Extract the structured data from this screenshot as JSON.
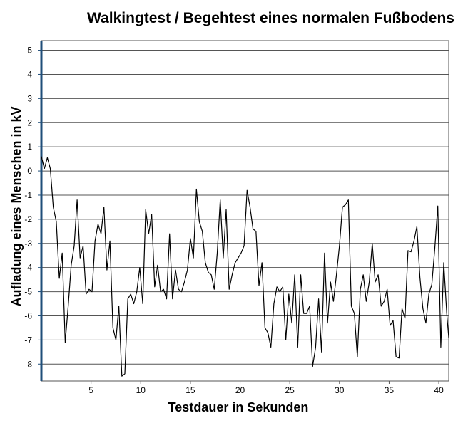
{
  "chart_data": {
    "type": "line",
    "title": "Walkingtest / Begehtest eines normalen Fußbodens",
    "xlabel": "Testdauer in Sekunden",
    "ylabel": "Aufladung eines Menschen in kV",
    "xlim": [
      0,
      41
    ],
    "ylim": [
      -8.7,
      5.4
    ],
    "xticks": [
      5,
      10,
      15,
      20,
      25,
      30,
      35,
      40
    ],
    "yticks": [
      5,
      4,
      3,
      2,
      1,
      0,
      -1,
      -2,
      -3,
      -4,
      -5,
      -6,
      -7,
      -8
    ],
    "grid": "horizontal",
    "series": [
      {
        "name": "Aufladung",
        "color": "#000000",
        "points": [
          [
            0,
            0.6
          ],
          [
            0.3,
            0.1
          ],
          [
            0.6,
            0.55
          ],
          [
            0.9,
            0.1
          ],
          [
            1.2,
            -1.5
          ],
          [
            1.5,
            -2.1
          ],
          [
            1.8,
            -4.45
          ],
          [
            2.1,
            -3.4
          ],
          [
            2.4,
            -7.1
          ],
          [
            2.7,
            -5.6
          ],
          [
            3.0,
            -3.9
          ],
          [
            3.3,
            -3.1
          ],
          [
            3.6,
            -1.2
          ],
          [
            3.9,
            -3.6
          ],
          [
            4.2,
            -3.1
          ],
          [
            4.5,
            -5.1
          ],
          [
            4.8,
            -4.9
          ],
          [
            5.1,
            -5.0
          ],
          [
            5.4,
            -2.9
          ],
          [
            5.7,
            -2.2
          ],
          [
            6.0,
            -2.6
          ],
          [
            6.3,
            -1.5
          ],
          [
            6.6,
            -4.1
          ],
          [
            6.9,
            -2.9
          ],
          [
            7.2,
            -6.5
          ],
          [
            7.5,
            -7.0
          ],
          [
            7.8,
            -5.6
          ],
          [
            8.1,
            -8.5
          ],
          [
            8.4,
            -8.4
          ],
          [
            8.7,
            -5.3
          ],
          [
            9.0,
            -5.1
          ],
          [
            9.3,
            -5.5
          ],
          [
            9.6,
            -5.0
          ],
          [
            9.9,
            -4.0
          ],
          [
            10.2,
            -5.5
          ],
          [
            10.5,
            -1.6
          ],
          [
            10.8,
            -2.6
          ],
          [
            11.1,
            -1.8
          ],
          [
            11.4,
            -4.8
          ],
          [
            11.7,
            -3.9
          ],
          [
            12.0,
            -5.0
          ],
          [
            12.3,
            -4.9
          ],
          [
            12.6,
            -5.3
          ],
          [
            12.9,
            -2.6
          ],
          [
            13.2,
            -5.3
          ],
          [
            13.5,
            -4.1
          ],
          [
            13.8,
            -4.9
          ],
          [
            14.1,
            -5.0
          ],
          [
            14.4,
            -4.6
          ],
          [
            14.7,
            -4.1
          ],
          [
            15.0,
            -2.8
          ],
          [
            15.3,
            -3.6
          ],
          [
            15.6,
            -0.75
          ],
          [
            15.9,
            -2.1
          ],
          [
            16.2,
            -2.5
          ],
          [
            16.5,
            -3.8
          ],
          [
            16.8,
            -4.2
          ],
          [
            17.1,
            -4.3
          ],
          [
            17.4,
            -4.9
          ],
          [
            17.7,
            -3.4
          ],
          [
            18.0,
            -1.2
          ],
          [
            18.3,
            -3.6
          ],
          [
            18.6,
            -1.6
          ],
          [
            18.9,
            -4.9
          ],
          [
            19.2,
            -4.3
          ],
          [
            19.5,
            -3.8
          ],
          [
            19.8,
            -3.6
          ],
          [
            20.1,
            -3.4
          ],
          [
            20.4,
            -3.1
          ],
          [
            20.7,
            -0.8
          ],
          [
            21.0,
            -1.5
          ],
          [
            21.3,
            -2.4
          ],
          [
            21.6,
            -2.5
          ],
          [
            21.9,
            -4.75
          ],
          [
            22.2,
            -3.8
          ],
          [
            22.5,
            -6.5
          ],
          [
            22.8,
            -6.7
          ],
          [
            23.1,
            -7.3
          ],
          [
            23.4,
            -5.5
          ],
          [
            23.7,
            -4.8
          ],
          [
            24.0,
            -5.0
          ],
          [
            24.3,
            -4.8
          ],
          [
            24.6,
            -7.0
          ],
          [
            24.9,
            -5.1
          ],
          [
            25.2,
            -6.3
          ],
          [
            25.5,
            -4.3
          ],
          [
            25.8,
            -7.3
          ],
          [
            26.1,
            -4.3
          ],
          [
            26.4,
            -5.9
          ],
          [
            26.7,
            -5.9
          ],
          [
            27.0,
            -5.6
          ],
          [
            27.3,
            -8.1
          ],
          [
            27.6,
            -7.3
          ],
          [
            27.9,
            -5.3
          ],
          [
            28.2,
            -7.5
          ],
          [
            28.5,
            -3.4
          ],
          [
            28.8,
            -6.3
          ],
          [
            29.1,
            -4.6
          ],
          [
            29.4,
            -5.4
          ],
          [
            29.7,
            -4.3
          ],
          [
            30.0,
            -3.1
          ],
          [
            30.3,
            -1.5
          ],
          [
            30.6,
            -1.4
          ],
          [
            30.9,
            -1.2
          ],
          [
            31.2,
            -5.6
          ],
          [
            31.5,
            -5.9
          ],
          [
            31.8,
            -7.7
          ],
          [
            32.1,
            -4.9
          ],
          [
            32.4,
            -4.3
          ],
          [
            32.7,
            -5.4
          ],
          [
            33.0,
            -4.6
          ],
          [
            33.3,
            -3.0
          ],
          [
            33.6,
            -4.6
          ],
          [
            33.9,
            -4.3
          ],
          [
            34.2,
            -5.6
          ],
          [
            34.5,
            -5.4
          ],
          [
            34.8,
            -4.9
          ],
          [
            35.1,
            -6.4
          ],
          [
            35.4,
            -6.2
          ],
          [
            35.7,
            -7.7
          ],
          [
            36.0,
            -7.75
          ],
          [
            36.3,
            -5.7
          ],
          [
            36.6,
            -6.1
          ],
          [
            36.9,
            -3.3
          ],
          [
            37.2,
            -3.35
          ],
          [
            37.5,
            -2.9
          ],
          [
            37.8,
            -2.3
          ],
          [
            38.1,
            -4.4
          ],
          [
            38.4,
            -5.7
          ],
          [
            38.7,
            -6.3
          ],
          [
            39.0,
            -5.1
          ],
          [
            39.3,
            -4.7
          ],
          [
            39.6,
            -3.2
          ],
          [
            39.9,
            -1.45
          ],
          [
            40.2,
            -7.3
          ],
          [
            40.5,
            -3.8
          ],
          [
            40.8,
            -5.9
          ],
          [
            41.0,
            -6.9
          ]
        ]
      }
    ]
  }
}
